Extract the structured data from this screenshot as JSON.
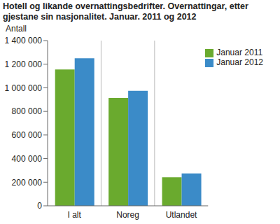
{
  "chart_data": {
    "type": "bar",
    "title": "Hotell og likande overnattingsbedrifter. Overnattingar, etter gjestane sin nasjonalitet. Januar. 2011 og 2012",
    "y_label": "Antall",
    "categories": [
      "I alt",
      "Noreg",
      "Utlandet"
    ],
    "series": [
      {
        "name": "Januar 2011",
        "color": "#6aaa2e",
        "values": [
          1155000,
          913000,
          242000
        ]
      },
      {
        "name": "Januar 2012",
        "color": "#3b8bc8",
        "values": [
          1250000,
          975000,
          275000
        ]
      }
    ],
    "ylim": [
      0,
      1400000
    ],
    "yticks": [
      0,
      {
        "value": 200000,
        "label": "200 000"
      },
      {
        "value": 400000,
        "label": "400 000"
      },
      {
        "value": 600000,
        "label": "600 000"
      },
      {
        "value": 800000,
        "label": "800 000"
      },
      {
        "value": 1000000,
        "label": "1 000 000"
      },
      {
        "value": 1200000,
        "label": "1 200 000"
      },
      {
        "value": 1400000,
        "label": "1 400 000"
      }
    ],
    "grid": true,
    "legend": "top-right"
  }
}
